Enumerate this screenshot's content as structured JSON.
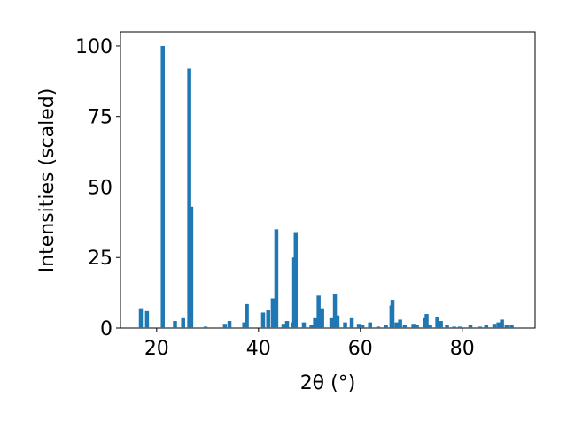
{
  "chart_data": {
    "type": "bar",
    "x_label": "2θ (°)",
    "y_label": "Intensities (scaled)",
    "x": [
      16.9,
      18.1,
      21.2,
      23.6,
      25.2,
      26.4,
      26.8,
      29.6,
      33.4,
      34.3,
      37.2,
      37.7,
      40.9,
      41.9,
      42.8,
      43.5,
      44.9,
      45.6,
      46.8,
      47.0,
      47.3,
      48.9,
      50.4,
      51.1,
      51.8,
      52.5,
      54.3,
      55.0,
      55.5,
      57.0,
      58.3,
      59.7,
      60.4,
      61.9,
      63.5,
      65.0,
      66.1,
      66.3,
      67.1,
      67.8,
      68.7,
      70.4,
      71.1,
      72.7,
      73.0,
      73.7,
      75.1,
      75.8,
      77.0,
      78.4,
      79.5,
      81.6,
      83.5,
      84.7,
      86.3,
      87.1,
      87.8,
      88.7,
      89.7
    ],
    "values": [
      7,
      6,
      100,
      2.5,
      3.5,
      92,
      43,
      0.5,
      1.5,
      2.5,
      2,
      8.5,
      5.5,
      6.5,
      10.5,
      35,
      1.5,
      2.5,
      2,
      25,
      34,
      2,
      1,
      3.5,
      11.5,
      7,
      3.5,
      12,
      4.5,
      2,
      3.5,
      1.5,
      1,
      2,
      0.5,
      1,
      8,
      10,
      2,
      3,
      1,
      1.5,
      1,
      3.5,
      5,
      1,
      4,
      2.5,
      1,
      0.5,
      0.5,
      1,
      0.5,
      1,
      1.5,
      2,
      3,
      1,
      1
    ],
    "color": "#1f77b4",
    "xlim": [
      12.9,
      94.3
    ],
    "ylim": [
      0,
      105
    ],
    "xticks": [
      20,
      40,
      60,
      80
    ],
    "yticks": [
      0,
      25,
      50,
      75,
      100
    ]
  }
}
